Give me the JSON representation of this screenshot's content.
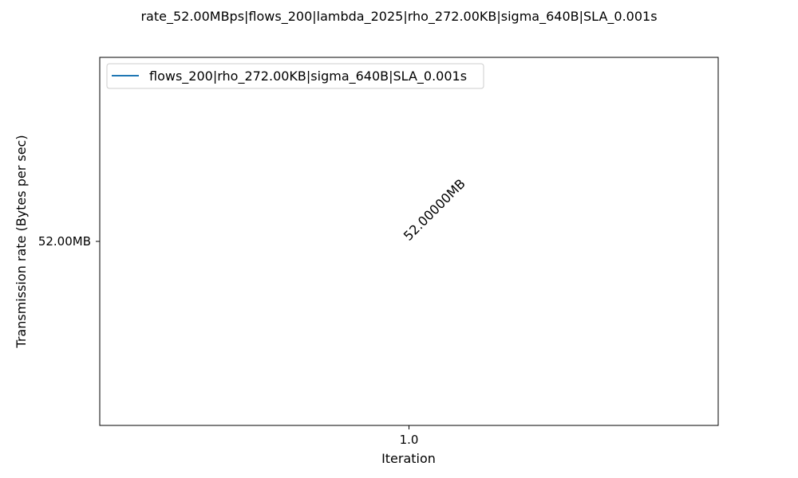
{
  "chart_data": {
    "type": "line",
    "title": "rate_52.00MBps|flows_200|lambda_2025|rho_272.00KB|sigma_640B|SLA_0.001s",
    "xlabel": "Iteration",
    "ylabel": "Transmission rate (Bytes per sec)",
    "x": [
      1.0
    ],
    "x_ticks": [
      "1.0"
    ],
    "y_ticks": [
      "52.00MB"
    ],
    "series": [
      {
        "name": "flows_200|rho_272.00KB|sigma_640B|SLA_0.001s",
        "values": [
          52000000
        ],
        "color": "#1f77b4"
      }
    ],
    "annotations": [
      {
        "text": "52.00000MB",
        "x": 1.0,
        "y": 52000000,
        "rotation": 45
      }
    ],
    "xlim": [
      0.96,
      1.04
    ],
    "ylim": [
      51900000,
      52100000
    ],
    "grid": false,
    "legend": "top-left"
  }
}
